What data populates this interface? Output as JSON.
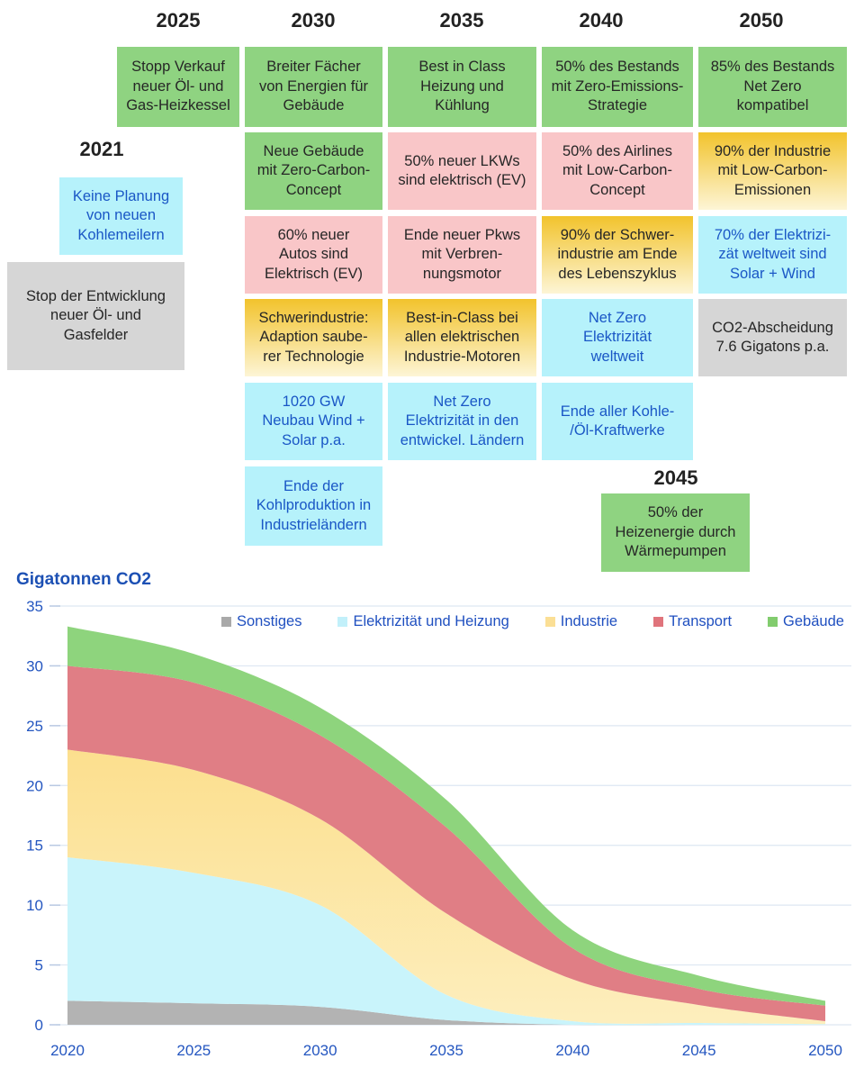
{
  "timeline": {
    "box_styles": {
      "green": {
        "bg": "#8fd381",
        "text": "#262626"
      },
      "pink": {
        "bg": "#f9c6c8",
        "text": "#262626"
      },
      "cyan": {
        "bg": "#b6f2fb",
        "text": "#1a57c6"
      },
      "gray": {
        "bg": "#d6d6d6",
        "text": "#262626"
      },
      "yellow": {
        "bg_top": "#f2c32c",
        "bg_bottom": "#fdf5d6",
        "text": "#262626"
      }
    },
    "groups": [
      {
        "year": "2021",
        "boxes": [
          {
            "style": "cyan",
            "text": "Keine Planung\nvon neuen\nKohlemeilern"
          },
          {
            "style": "gray",
            "text": "Stop der Entwicklung\nneuer Öl- und\nGasfelder"
          }
        ]
      },
      {
        "year": "2025",
        "boxes": [
          {
            "style": "green",
            "text": "Stopp Verkauf\nneuer Öl- und\nGas-Heizkessel"
          }
        ]
      },
      {
        "year": "2030",
        "boxes": [
          {
            "style": "green",
            "text": "Breiter Fächer\nvon Energien für\nGebäude"
          },
          {
            "style": "green",
            "text": "Neue Gebäude\nmit Zero-Carbon-\nConcept"
          },
          {
            "style": "pink",
            "text": "60% neuer\nAutos sind\nElektrisch (EV)"
          },
          {
            "style": "yellow",
            "text": "Schwerindustrie:\nAdaption saube-\nrer Technologie"
          },
          {
            "style": "cyan",
            "text": "1020 GW\nNeubau Wind +\nSolar p.a."
          },
          {
            "style": "cyan",
            "text": "Ende der\nKohlproduktion in\nIndustrieländern"
          }
        ]
      },
      {
        "year": "2035",
        "boxes": [
          {
            "style": "green",
            "text": "Best in Class\nHeizung und\nKühlung"
          },
          {
            "style": "pink",
            "text": "50% neuer LKWs\nsind elektrisch (EV)"
          },
          {
            "style": "pink",
            "text": "Ende neuer Pkws\nmit Verbren-\nnungsmotor"
          },
          {
            "style": "yellow",
            "text": "Best-in-Class bei\nallen elektrischen\nIndustrie-Motoren"
          },
          {
            "style": "cyan",
            "text": "Net Zero\nElektrizität in den\nentwickel. Ländern"
          }
        ]
      },
      {
        "year": "2040",
        "boxes": [
          {
            "style": "green",
            "text": "50% des Bestands\nmit Zero-Emissions-\nStrategie"
          },
          {
            "style": "pink",
            "text": "50% des Airlines\nmit Low-Carbon-\nConcept"
          },
          {
            "style": "yellow",
            "text": "90% der Schwer-\nindustrie am Ende\ndes Lebenszyklus"
          },
          {
            "style": "cyan",
            "text": "Net Zero\nElektrizität\nweltweit"
          },
          {
            "style": "cyan",
            "text": "Ende aller Kohle-\n/Öl-Kraftwerke"
          }
        ]
      },
      {
        "year": "2045",
        "boxes": [
          {
            "style": "green",
            "text": "50% der\nHeizenergie durch\nWärmepumpen"
          }
        ]
      },
      {
        "year": "2050",
        "boxes": [
          {
            "style": "green",
            "text": "85% des Bestands\nNet Zero\nkompatibel"
          },
          {
            "style": "yellow",
            "text": "90% der Industrie\nmit Low-Carbon-\nEmissionen"
          },
          {
            "style": "cyan",
            "text": "70% der Elektrizi-\nzät weltweit sind\nSolar + Wind"
          },
          {
            "style": "gray",
            "text": "CO2-Abscheidung\n7.6 Gigatons p.a."
          }
        ]
      }
    ]
  },
  "chart_data": {
    "type": "area",
    "stacked": true,
    "title": "Gigatonnen CO2",
    "x": [
      2020,
      2025,
      2030,
      2035,
      2040,
      2045,
      2050
    ],
    "series": [
      {
        "id": "sonstiges",
        "name": "Sonstiges",
        "color": "#b3b3b3",
        "legend_color": "#a9a9a9",
        "values": [
          2.0,
          1.8,
          1.5,
          0.4,
          0,
          0,
          0
        ]
      },
      {
        "id": "elektrizitaet-und-heizung",
        "name": "Elektrizität und Heizung",
        "color": "#c9f4fb",
        "legend_color": "#c2f0fa",
        "values": [
          12.0,
          10.9,
          8.5,
          2.1,
          0.3,
          0.15,
          0.05
        ]
      },
      {
        "id": "industrie",
        "name": "Industrie",
        "color": "#fcdf8e",
        "color2": "#fdeebd",
        "legend_color": "#fbdf95",
        "values": [
          9.0,
          8.6,
          7.2,
          6.8,
          3.5,
          1.5,
          0.25
        ]
      },
      {
        "id": "transport",
        "name": "Transport",
        "color": "#e07e85",
        "legend_color": "#e0747c",
        "values": [
          7.0,
          7.3,
          7.0,
          7.2,
          2.6,
          1.35,
          1.3
        ]
      },
      {
        "id": "gebaeude",
        "name": "Gebäude",
        "color": "#8ed47d",
        "legend_color": "#82cc6e",
        "values": [
          3.3,
          2.4,
          2.3,
          2.3,
          1.5,
          1.1,
          0.4
        ]
      }
    ],
    "ylim": [
      0,
      35
    ],
    "yticks": [
      0,
      5,
      10,
      15,
      20,
      25,
      30,
      35
    ],
    "xticks": [
      2020,
      2025,
      2030,
      2035,
      2040,
      2045,
      2050
    ],
    "grid": true,
    "legend_position": "top-inside",
    "axis_label_color": "#2456c0",
    "gridline_color": "#dde7f2"
  }
}
